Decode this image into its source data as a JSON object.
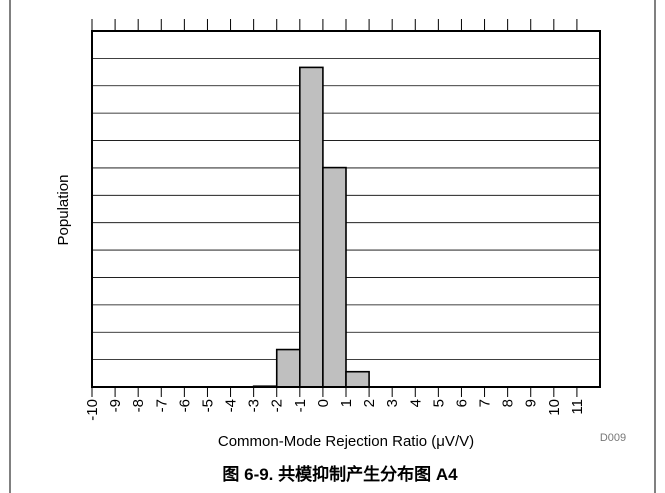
{
  "chart_data": {
    "type": "bar",
    "title": "图 6-9. 共模抑制产生分布图 A4",
    "xlabel": "Common-Mode Rejection Ratio (μV/V)",
    "ylabel": "Population",
    "code": "D009",
    "categories": [
      "-10",
      "-9",
      "-8",
      "-7",
      "-6",
      "-5",
      "-4",
      "-3",
      "-2",
      "-1",
      "0",
      "1",
      "2",
      "3",
      "4",
      "5",
      "6",
      "7",
      "8",
      "9",
      "10",
      "11"
    ],
    "values": [
      0,
      0,
      0,
      0,
      0,
      0,
      0,
      0.15,
      7.1,
      60.6,
      41.6,
      2.9,
      0,
      0,
      0,
      0,
      0,
      0,
      0,
      0,
      0,
      0
    ],
    "ylim": [
      0,
      67.5
    ],
    "grid": true,
    "colors": {
      "bar_fill": "#bfbfbf",
      "bar_stroke": "#000000",
      "grid": "#000000",
      "text": "#000000",
      "code": "#777777"
    }
  }
}
